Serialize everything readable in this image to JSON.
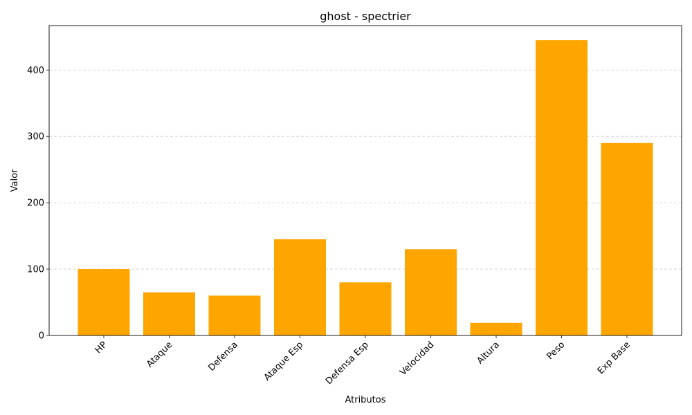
{
  "chart_data": {
    "type": "bar",
    "title": "ghost - spectrier",
    "xlabel": "Atributos",
    "ylabel": "Valor",
    "categories": [
      "HP",
      "Ataque",
      "Defensa",
      "Ataque Esp",
      "Defensa Esp",
      "Velocidad",
      "Altura",
      "Peso",
      "Exp Base"
    ],
    "values": [
      100,
      65,
      60,
      145,
      80,
      130,
      19,
      445,
      290
    ],
    "ylim": [
      0,
      467
    ],
    "yticks": [
      0,
      100,
      200,
      300,
      400
    ],
    "grid": "y-dashed",
    "bar_color": "#ffa500",
    "legend": "none"
  }
}
